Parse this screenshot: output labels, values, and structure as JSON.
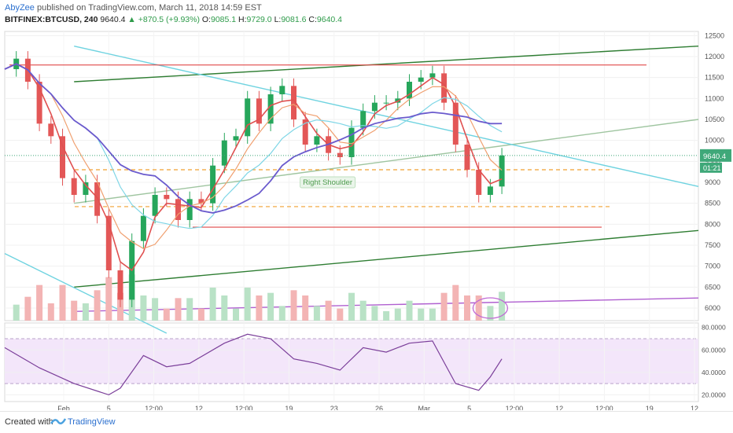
{
  "header": {
    "author": "AbyZee",
    "published": "published on TradingView.com, March 11, 2018 14:59 EST",
    "symbol": "BITFINEX:BTCUSD, 240",
    "last": "9640.4",
    "change": "+870.5 (+9.93%)",
    "ohlc": {
      "o_label": "O:",
      "o": "9085.1",
      "h_label": "H:",
      "h": "9729.0",
      "l_label": "L:",
      "l": "9081.6",
      "c_label": "C:",
      "c": "9640.4"
    }
  },
  "footer": {
    "created": "Created with",
    "brand": "TradingView"
  },
  "chart_data": {
    "type": "line",
    "title": "BITFINEX:BTCUSD, 240",
    "price_axis": {
      "ticks": [
        6000,
        6500,
        7000,
        7500,
        8000,
        8500,
        9000,
        9500,
        10000,
        10500,
        11000,
        11500,
        12000,
        12500
      ],
      "ylim": [
        5700,
        12600
      ]
    },
    "rsi_axis": {
      "ticks": [
        20,
        40,
        60,
        80
      ],
      "labels": [
        "20.0000",
        "40.0000",
        "60.0000",
        "80.0000"
      ],
      "ylim": [
        14,
        84
      ],
      "band": [
        30,
        70
      ]
    },
    "x_ticks": [
      "Feb",
      "5",
      "12:00",
      "12",
      "12:00",
      "19",
      "23",
      "26",
      "Mar",
      "5",
      "12:00",
      "12",
      "12:00",
      "19",
      "12"
    ],
    "last_price": "9640.4",
    "countdown": "01:21",
    "annotations": [
      "Right Shoulder"
    ],
    "price_close_points": [
      [
        "Jan 27",
        11700
      ],
      [
        "Jan 28",
        11950
      ],
      [
        "Jan 29",
        11400
      ],
      [
        "Jan 30",
        10400
      ],
      [
        "Jan 31",
        10100
      ],
      [
        "Feb 1",
        9100
      ],
      [
        "Feb 2",
        8700
      ],
      [
        "Feb 3",
        9000
      ],
      [
        "Feb 4",
        8200
      ],
      [
        "Feb 5",
        6900
      ],
      [
        "Feb 6",
        6200
      ],
      [
        "Feb 7",
        7600
      ],
      [
        "Feb 8",
        8200
      ],
      [
        "Feb 9",
        8700
      ],
      [
        "Feb 10",
        8600
      ],
      [
        "Feb 11",
        8100
      ],
      [
        "Feb 12",
        8600
      ],
      [
        "Feb 13",
        8500
      ],
      [
        "Feb 14",
        9400
      ],
      [
        "Feb 15",
        10000
      ],
      [
        "Feb 16",
        10100
      ],
      [
        "Feb 17",
        11000
      ],
      [
        "Feb 18",
        10400
      ],
      [
        "Feb 19",
        11100
      ],
      [
        "Feb 20",
        11300
      ],
      [
        "Feb 21",
        10500
      ],
      [
        "Feb 22",
        9900
      ],
      [
        "Feb 23",
        10100
      ],
      [
        "Feb 24",
        9700
      ],
      [
        "Feb 25",
        9600
      ],
      [
        "Feb 26",
        10300
      ],
      [
        "Feb 27",
        10700
      ],
      [
        "Feb 28",
        10900
      ],
      [
        "Mar 1",
        10900
      ],
      [
        "Mar 2",
        11000
      ],
      [
        "Mar 3",
        11400
      ],
      [
        "Mar 4",
        11500
      ],
      [
        "Mar 5",
        11600
      ],
      [
        "Mar 6",
        10900
      ],
      [
        "Mar 7",
        9900
      ],
      [
        "Mar 8",
        9300
      ],
      [
        "Mar 9",
        8700
      ],
      [
        "Mar 10",
        8900
      ],
      [
        "Mar 11",
        9640
      ]
    ],
    "rsi_points": [
      [
        "Jan 27",
        62
      ],
      [
        "Jan 30",
        44
      ],
      [
        "Feb 2",
        30
      ],
      [
        "Feb 5",
        20
      ],
      [
        "Feb 6",
        26
      ],
      [
        "Feb 8",
        55
      ],
      [
        "Feb 10",
        45
      ],
      [
        "Feb 12",
        48
      ],
      [
        "Feb 15",
        66
      ],
      [
        "Feb 17",
        74
      ],
      [
        "Feb 19",
        70
      ],
      [
        "Feb 21",
        52
      ],
      [
        "Feb 23",
        48
      ],
      [
        "Feb 25",
        42
      ],
      [
        "Feb 27",
        62
      ],
      [
        "Mar 1",
        58
      ],
      [
        "Mar 3",
        66
      ],
      [
        "Mar 5",
        68
      ],
      [
        "Mar 7",
        30
      ],
      [
        "Mar 9",
        24
      ],
      [
        "Mar 10",
        36
      ],
      [
        "Mar 11",
        52
      ]
    ],
    "horizontal_levels": [
      {
        "price": 11800,
        "style": "solid",
        "color": "#e04848"
      },
      {
        "price": 9300,
        "style": "dashed",
        "color": "#f0a030"
      },
      {
        "price": 8420,
        "style": "dashed",
        "color": "#f0a030"
      },
      {
        "price": 7930,
        "style": "solid",
        "color": "#e04848"
      }
    ],
    "colors": {
      "bull": "#26a65b",
      "bear": "#e35757",
      "rsi": "#7b3f9a",
      "rsi_band": "#f3e6fa",
      "price_tag": "#3fa879"
    }
  }
}
